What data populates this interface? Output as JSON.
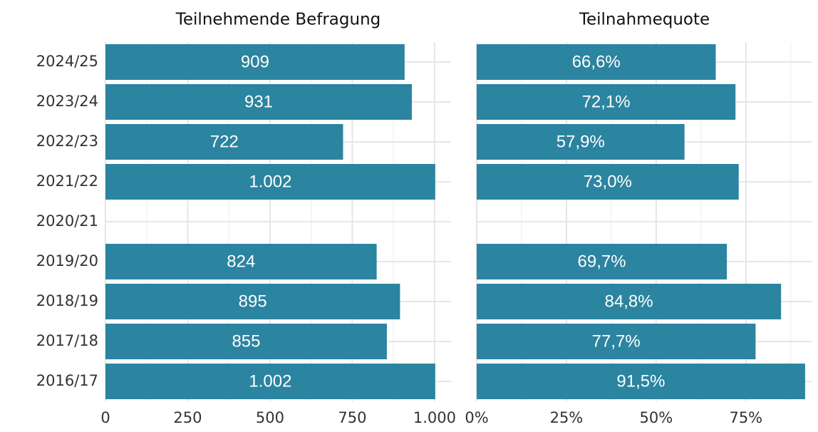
{
  "chart_data": [
    {
      "type": "barh",
      "title": "Teilnehmende Befragung",
      "categories": [
        "2024/25",
        "2023/24",
        "2022/23",
        "2021/22",
        "2020/21",
        "2019/20",
        "2018/19",
        "2017/18",
        "2016/17"
      ],
      "values": [
        909,
        931,
        722,
        1002,
        null,
        824,
        895,
        855,
        1002
      ],
      "value_labels": [
        "909",
        "931",
        "722",
        "1.002",
        null,
        "824",
        "895",
        "855",
        "1.002"
      ],
      "color": "#2b84a0",
      "xlim": [
        0,
        1050
      ],
      "xticks": [
        0,
        250,
        500,
        750,
        {
          "value": 1000,
          "label": "1.000"
        }
      ],
      "grid": true
    },
    {
      "type": "barh",
      "title": "Teilnahmequote",
      "values": [
        66.6,
        72.1,
        57.9,
        73.0,
        null,
        69.7,
        84.8,
        77.7,
        91.5
      ],
      "value_labels": [
        "66,6%",
        "72,1%",
        "57,9%",
        "73,0%",
        null,
        "69,7%",
        "84,8%",
        "77,7%",
        "91,5%"
      ],
      "color": "#2b84a0",
      "xlim": [
        0,
        93.5
      ],
      "xticks": [
        {
          "value": 0,
          "label": "0%"
        },
        {
          "value": 25,
          "label": "25%"
        },
        {
          "value": 50,
          "label": "50%"
        },
        {
          "value": 75,
          "label": "75%"
        }
      ],
      "grid": true
    }
  ]
}
